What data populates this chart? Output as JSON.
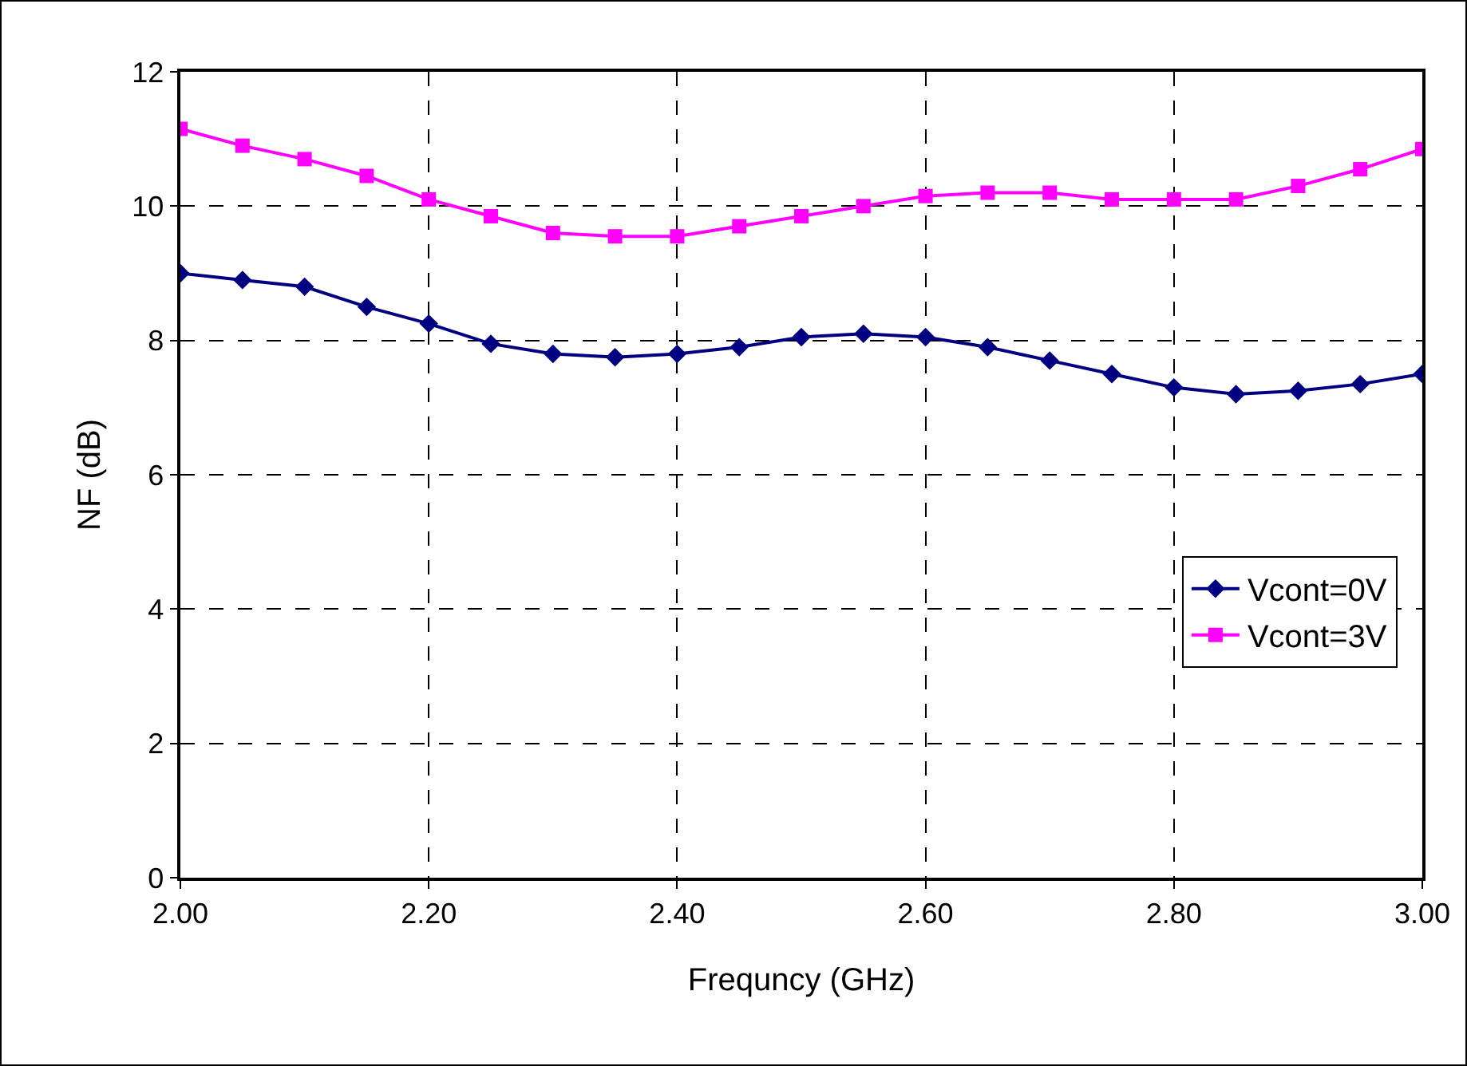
{
  "chart_data": {
    "type": "line",
    "xlabel": "Frequncy (GHz)",
    "ylabel": "NF (dB)",
    "x": [
      2.0,
      2.05,
      2.1,
      2.15,
      2.2,
      2.25,
      2.3,
      2.35,
      2.4,
      2.45,
      2.5,
      2.55,
      2.6,
      2.65,
      2.7,
      2.75,
      2.8,
      2.85,
      2.9,
      2.95,
      3.0
    ],
    "series": [
      {
        "name": "Vcont=0V",
        "color": "#000080",
        "marker": "diamond",
        "values": [
          9.0,
          8.9,
          8.8,
          8.5,
          8.25,
          7.95,
          7.8,
          7.75,
          7.8,
          7.9,
          8.05,
          8.1,
          8.05,
          7.9,
          7.7,
          7.5,
          7.3,
          7.2,
          7.25,
          7.35,
          7.5
        ]
      },
      {
        "name": "Vcont=3V",
        "color": "#ff00ff",
        "marker": "square",
        "values": [
          11.15,
          10.9,
          10.7,
          10.45,
          10.1,
          9.85,
          9.6,
          9.55,
          9.55,
          9.7,
          9.85,
          10.0,
          10.15,
          10.2,
          10.2,
          10.1,
          10.1,
          10.1,
          10.3,
          10.55,
          10.85
        ]
      }
    ],
    "xlim": [
      2.0,
      3.0
    ],
    "xticks": [
      {
        "value": 2.0,
        "label": "2.00"
      },
      {
        "value": 2.2,
        "label": "2.20"
      },
      {
        "value": 2.4,
        "label": "2.40"
      },
      {
        "value": 2.6,
        "label": "2.60"
      },
      {
        "value": 2.8,
        "label": "2.80"
      },
      {
        "value": 3.0,
        "label": "3.00"
      }
    ],
    "ylim": [
      0,
      12
    ],
    "yticks": [
      0,
      2,
      4,
      6,
      8,
      10,
      12
    ],
    "grid": true,
    "legend": "right",
    "line_style": "solid"
  }
}
